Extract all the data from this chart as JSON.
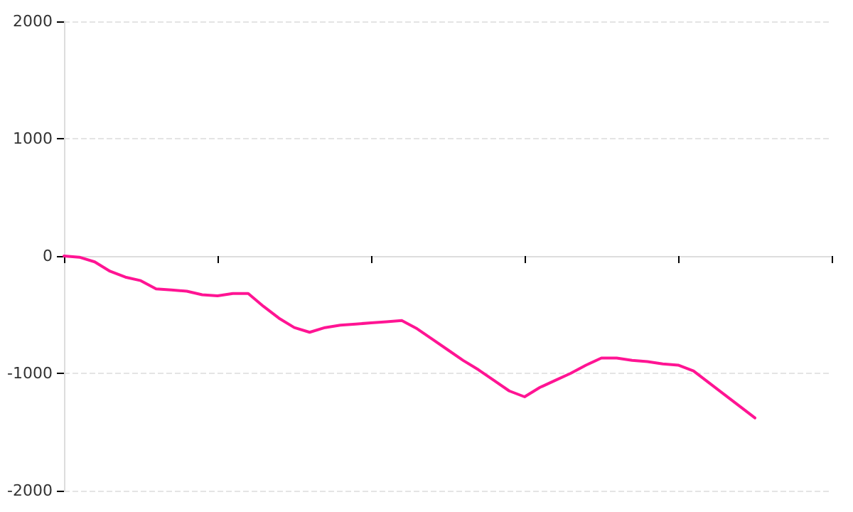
{
  "chart_data": {
    "type": "line",
    "categories": [
      null,
      null,
      null,
      null,
      null,
      null,
      null,
      null,
      null,
      null,
      null,
      null,
      null,
      null,
      null,
      null,
      null,
      null,
      null,
      null,
      null,
      null,
      null,
      null,
      null,
      null,
      null,
      null,
      null,
      null,
      null,
      null,
      null,
      null,
      null,
      null,
      null,
      null,
      null,
      null,
      null,
      null,
      null,
      null,
      null,
      null,
      null,
      null,
      null,
      null,
      null
    ],
    "series": [
      {
        "color": "#ff1493",
        "values": [
          0,
          -10,
          -50,
          -130,
          -180,
          -210,
          -280,
          -290,
          -300,
          -330,
          -340,
          -320,
          -320,
          -430,
          -530,
          -610,
          -650,
          -610,
          -590,
          -580,
          -570,
          -560,
          -550,
          -620,
          -710,
          -800,
          -890,
          -970,
          -1060,
          -1150,
          -1200,
          -1120,
          -1060,
          -1000,
          -930,
          -870,
          -870,
          -890,
          -900,
          -920,
          -930,
          -980,
          -1080,
          -1180,
          -1280,
          -1380,
          null,
          null,
          null,
          null,
          null
        ]
      }
    ],
    "ylim": [
      -2000,
      2000
    ],
    "yticks": [
      -2000,
      -1000,
      0,
      1000,
      2000
    ],
    "tick_labels": "y",
    "grid": "y",
    "marker": "none",
    "line_style": "solid"
  }
}
